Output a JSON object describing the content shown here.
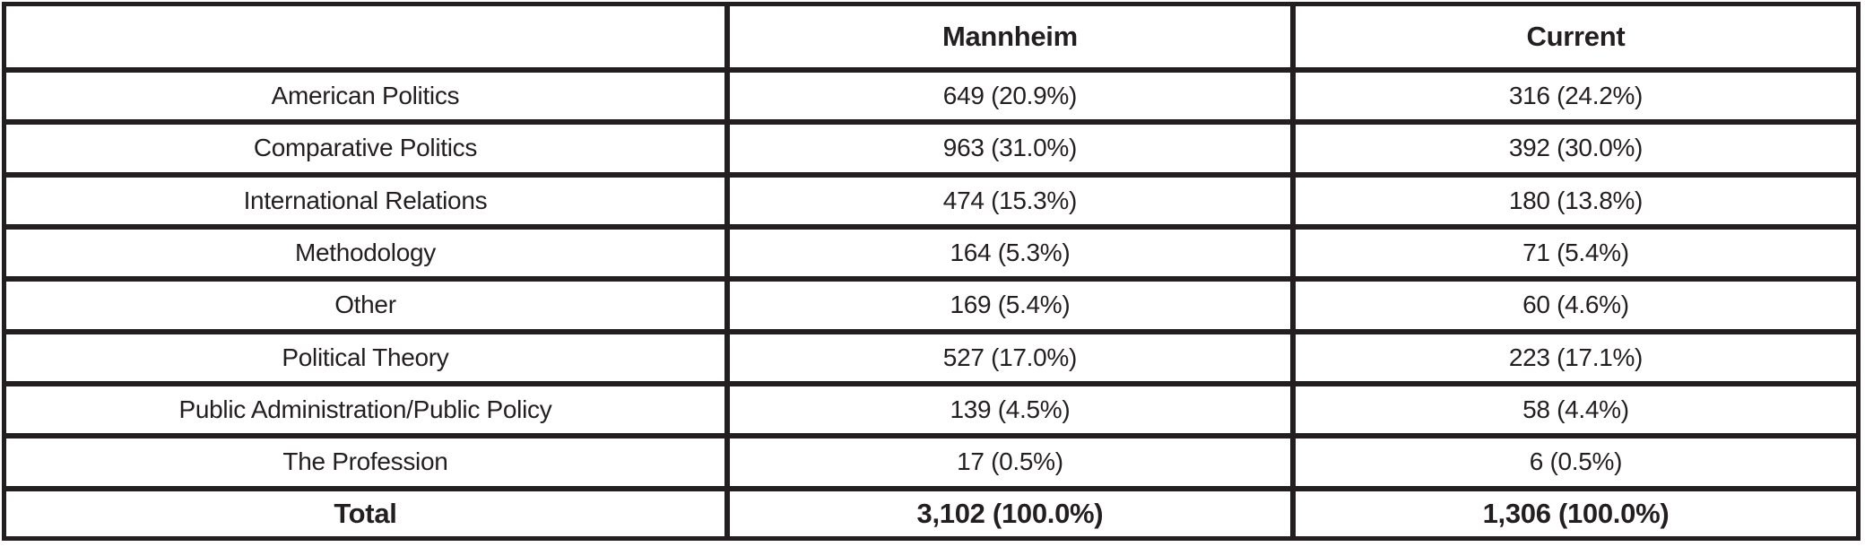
{
  "colors": {
    "text": "#231f20",
    "border": "#231f20",
    "background": "#ffffff"
  },
  "table": {
    "header": {
      "col0": "",
      "col1": "Mannheim",
      "col2": "Current"
    },
    "rows": [
      {
        "label": "American Politics",
        "mannheim": "649 (20.9%)",
        "current": "316 (24.2%)"
      },
      {
        "label": "Comparative Politics",
        "mannheim": "963 (31.0%)",
        "current": "392 (30.0%)"
      },
      {
        "label": "International Relations",
        "mannheim": "474 (15.3%)",
        "current": "180 (13.8%)"
      },
      {
        "label": "Methodology",
        "mannheim": "164 (5.3%)",
        "current": "71 (5.4%)"
      },
      {
        "label": "Other",
        "mannheim": "169 (5.4%)",
        "current": "60 (4.6%)"
      },
      {
        "label": "Political Theory",
        "mannheim": "527 (17.0%)",
        "current": "223 (17.1%)"
      },
      {
        "label": "Public Administration/Public Policy",
        "mannheim": "139 (4.5%)",
        "current": "58 (4.4%)"
      },
      {
        "label": "The Profession",
        "mannheim": "17 (0.5%)",
        "current": "6 (0.5%)"
      }
    ],
    "total_row": {
      "label": "Total",
      "mannheim": "3,102 (100.0%)",
      "current": "1,306 (100.0%)"
    }
  },
  "chart_data": {
    "type": "table",
    "columns": [
      "",
      "Mannheim",
      "Current"
    ],
    "categories": [
      "American Politics",
      "Comparative Politics",
      "International Relations",
      "Methodology",
      "Other",
      "Political Theory",
      "Public Administration/Public Policy",
      "The Profession"
    ],
    "series": [
      {
        "name": "Mannheim",
        "counts": [
          649,
          963,
          474,
          164,
          169,
          527,
          139,
          17
        ],
        "percents": [
          20.9,
          31.0,
          15.3,
          5.3,
          5.4,
          17.0,
          4.5,
          0.5
        ],
        "total_count": 3102,
        "total_percent": 100.0
      },
      {
        "name": "Current",
        "counts": [
          316,
          392,
          180,
          71,
          60,
          223,
          58,
          6
        ],
        "percents": [
          24.2,
          30.0,
          13.8,
          5.4,
          4.6,
          17.1,
          4.4,
          0.5
        ],
        "total_count": 1306,
        "total_percent": 100.0
      }
    ]
  }
}
